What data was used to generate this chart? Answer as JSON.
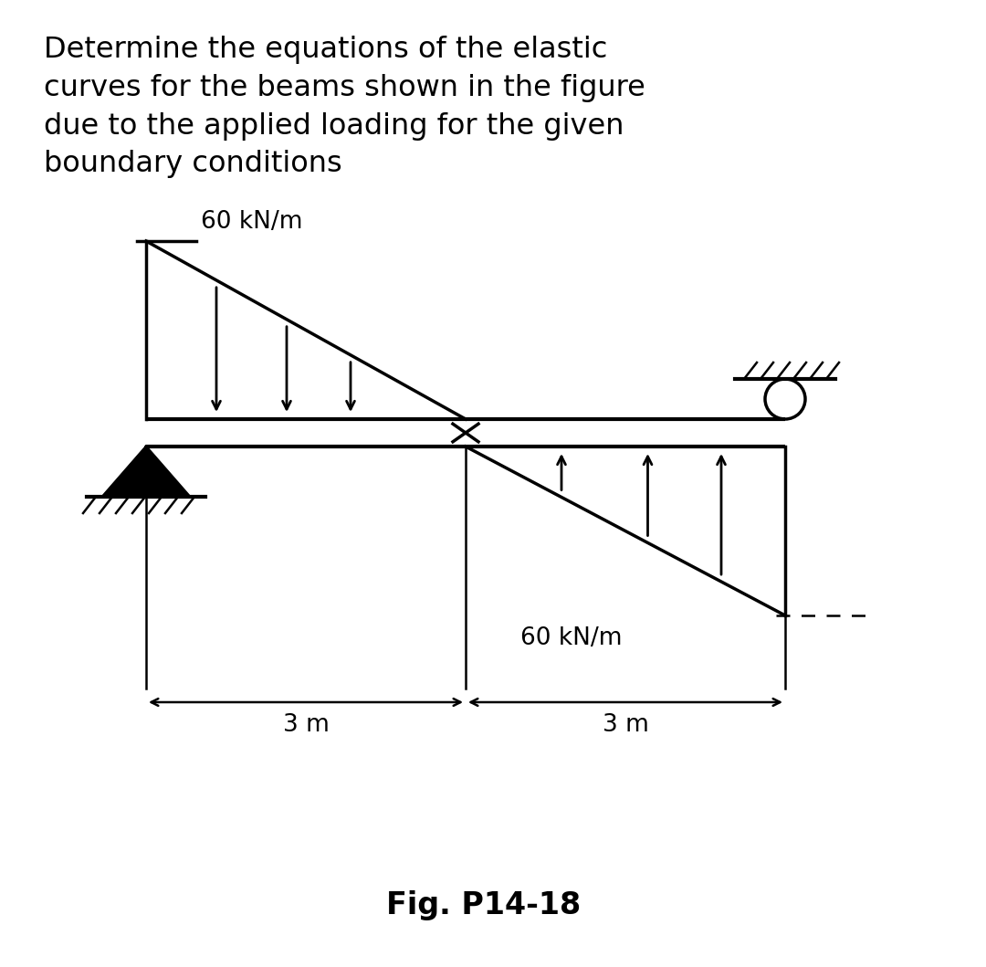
{
  "title_text": "Determine the equations of the elastic\ncurves for the beams shown in the figure\ndue to the applied loading for the given\nboundary conditions",
  "fig_label": "Fig. P14-18",
  "load_label_top": "60 kN/m",
  "load_label_bottom": "60 kN/m",
  "dim_label_left": "3 m",
  "dim_label_right": "3 m",
  "bg_color": "#ffffff",
  "beam_color": "#000000",
  "text_color": "#000000",
  "title_fontsize": 23,
  "label_fontsize": 19,
  "fig_label_fontsize": 24
}
